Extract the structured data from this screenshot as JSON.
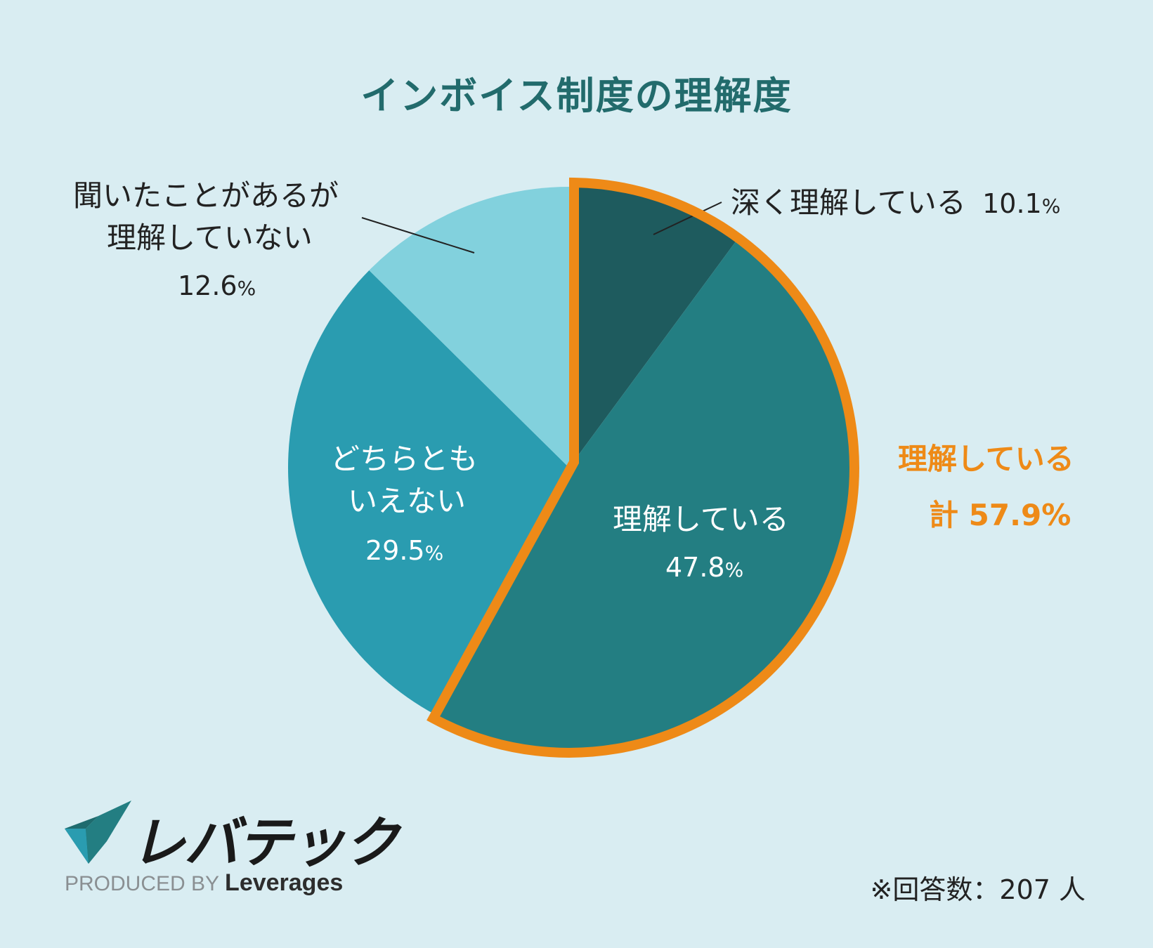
{
  "title": "インボイス制度の理解度",
  "chart_data": {
    "type": "pie",
    "title": "インボイス制度の理解度",
    "slices": [
      {
        "label": "深く理解している",
        "value": 10.1,
        "color": "#1e5b5e"
      },
      {
        "label": "理解している",
        "value": 47.8,
        "color": "#237e82"
      },
      {
        "label": "どちらともいえない",
        "value": 29.5,
        "color": "#2a9cb0"
      },
      {
        "label": "聞いたことがあるが理解していない",
        "value": 12.6,
        "color": "#82d1dd"
      }
    ],
    "highlight": {
      "label": "理解している",
      "total_label": "計",
      "total_value": "57.9",
      "color": "#ee8a17"
    },
    "unit": "%"
  },
  "labels": {
    "deep": {
      "text": "深く理解している",
      "value": "10.1",
      "unit": "%"
    },
    "understand": {
      "text": "理解している",
      "value": "47.8",
      "unit": "%"
    },
    "neither": {
      "line1": "どちらとも",
      "line2": "いえない",
      "value": "29.5",
      "unit": "%"
    },
    "heard": {
      "line1": "聞いたことがあるが",
      "line2": "理解していない",
      "value": "12.6",
      "unit": "%"
    },
    "total": {
      "line1": "理解している",
      "line2": "計 57.9%"
    }
  },
  "logo": {
    "name": "レバテック",
    "produced_by": "PRODUCED BY",
    "brand": "Leverages"
  },
  "footnote": "※回答数：207 人"
}
